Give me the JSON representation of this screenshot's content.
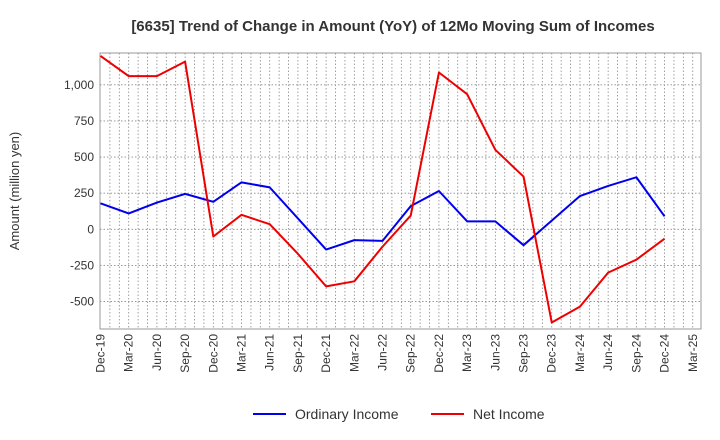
{
  "chart_data": {
    "type": "line",
    "title": "[6635]  Trend of Change in Amount (YoY) of 12Mo Moving Sum of Incomes",
    "xlabel": "",
    "ylabel": "Amount (million yen)",
    "categories": [
      "Dec-19",
      "Mar-20",
      "Jun-20",
      "Sep-20",
      "Dec-20",
      "Mar-21",
      "Jun-21",
      "Sep-21",
      "Dec-21",
      "Mar-22",
      "Jun-22",
      "Sep-22",
      "Dec-22",
      "Mar-23",
      "Jun-23",
      "Sep-23",
      "Dec-23",
      "Mar-24",
      "Jun-24",
      "Sep-24",
      "Dec-24",
      "Mar-25"
    ],
    "ylim": [
      -690,
      1220
    ],
    "yticks": [
      1000,
      750,
      500,
      250,
      0,
      -250,
      -500
    ],
    "ytick_labels": [
      "1,000",
      "750",
      "500",
      "250",
      "0",
      "-250",
      "-500"
    ],
    "grid": true,
    "legend_position": "bottom",
    "series": [
      {
        "name": "Ordinary Income",
        "color": "#0000ee",
        "values": [
          180,
          110,
          185,
          245,
          190,
          325,
          290,
          75,
          -140,
          -75,
          -80,
          160,
          265,
          55,
          55,
          -110,
          60,
          230,
          300,
          360,
          90,
          null
        ]
      },
      {
        "name": "Net Income",
        "color": "#ee0000",
        "values": [
          1200,
          1060,
          1060,
          1160,
          -50,
          100,
          35,
          -170,
          -395,
          -360,
          -120,
          95,
          1085,
          935,
          550,
          365,
          -645,
          -535,
          -300,
          -210,
          -65,
          null
        ]
      }
    ]
  }
}
